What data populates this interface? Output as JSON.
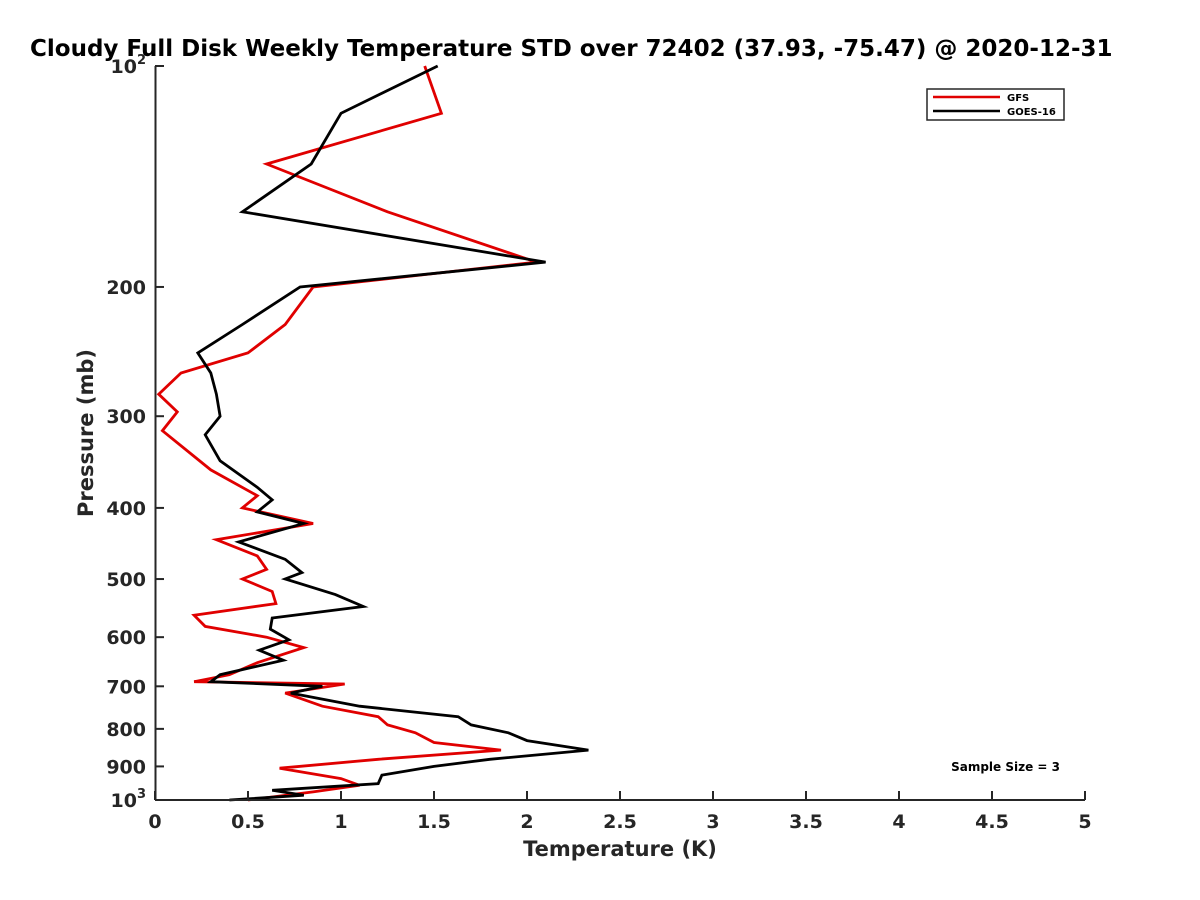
{
  "chart_data": {
    "type": "line",
    "title": "Cloudy Full Disk Weekly Temperature STD over 72402 (37.93, -75.47) @ 2020-12-31",
    "xlabel": "Temperature (K)",
    "ylabel": "Pressure (mb)",
    "xlim": [
      0,
      5
    ],
    "ylim": [
      100,
      1000
    ],
    "y_scale": "log",
    "y_reversed": true,
    "grid": false,
    "legend_position": "top-right",
    "x_ticks": [
      {
        "value": 0,
        "label": "0"
      },
      {
        "value": 0.5,
        "label": "0.5"
      },
      {
        "value": 1,
        "label": "1"
      },
      {
        "value": 1.5,
        "label": "1.5"
      },
      {
        "value": 2,
        "label": "2"
      },
      {
        "value": 2.5,
        "label": "2.5"
      },
      {
        "value": 3,
        "label": "3"
      },
      {
        "value": 3.5,
        "label": "3.5"
      },
      {
        "value": 4,
        "label": "4"
      },
      {
        "value": 4.5,
        "label": "4.5"
      },
      {
        "value": 5,
        "label": "5"
      }
    ],
    "y_ticks": [
      {
        "value": 100,
        "label": "10",
        "sup": "2"
      },
      {
        "value": 200,
        "label": "200",
        "sup": ""
      },
      {
        "value": 300,
        "label": "300",
        "sup": ""
      },
      {
        "value": 400,
        "label": "400",
        "sup": ""
      },
      {
        "value": 500,
        "label": "500",
        "sup": ""
      },
      {
        "value": 600,
        "label": "600",
        "sup": ""
      },
      {
        "value": 700,
        "label": "700",
        "sup": ""
      },
      {
        "value": 800,
        "label": "800",
        "sup": ""
      },
      {
        "value": 900,
        "label": "900",
        "sup": ""
      },
      {
        "value": 1000,
        "label": "10",
        "sup": "3"
      }
    ],
    "annotation": "Sample Size = 3",
    "series": [
      {
        "name": "GFS",
        "color": "#e00000",
        "points": [
          [
            1.45,
            100
          ],
          [
            1.54,
            116
          ],
          [
            0.6,
            136
          ],
          [
            1.25,
            158
          ],
          [
            2.05,
            185
          ],
          [
            0.85,
            200
          ],
          [
            0.7,
            225
          ],
          [
            0.5,
            246
          ],
          [
            0.14,
            262
          ],
          [
            0.02,
            280
          ],
          [
            0.12,
            296
          ],
          [
            0.04,
            314
          ],
          [
            0.3,
            355
          ],
          [
            0.55,
            385
          ],
          [
            0.47,
            400
          ],
          [
            0.85,
            420
          ],
          [
            0.33,
            442
          ],
          [
            0.55,
            465
          ],
          [
            0.6,
            485
          ],
          [
            0.47,
            500
          ],
          [
            0.63,
            520
          ],
          [
            0.65,
            540
          ],
          [
            0.21,
            560
          ],
          [
            0.27,
            580
          ],
          [
            0.6,
            600
          ],
          [
            0.8,
            620
          ],
          [
            0.55,
            650
          ],
          [
            0.4,
            675
          ],
          [
            0.21,
            690
          ],
          [
            1.02,
            695
          ],
          [
            0.7,
            715
          ],
          [
            0.9,
            745
          ],
          [
            1.2,
            770
          ],
          [
            1.25,
            790
          ],
          [
            1.4,
            810
          ],
          [
            1.5,
            835
          ],
          [
            1.86,
            855
          ],
          [
            1.2,
            880
          ],
          [
            0.67,
            905
          ],
          [
            1.0,
            935
          ],
          [
            1.1,
            955
          ],
          [
            0.85,
            975
          ],
          [
            0.5,
            1000
          ]
        ]
      },
      {
        "name": "GOES-16",
        "color": "#000000",
        "points": [
          [
            1.52,
            100
          ],
          [
            1.0,
            116
          ],
          [
            0.84,
            136
          ],
          [
            0.47,
            158
          ],
          [
            2.1,
            185
          ],
          [
            0.78,
            200
          ],
          [
            0.47,
            225
          ],
          [
            0.23,
            246
          ],
          [
            0.3,
            262
          ],
          [
            0.33,
            280
          ],
          [
            0.35,
            300
          ],
          [
            0.27,
            318
          ],
          [
            0.35,
            345
          ],
          [
            0.55,
            375
          ],
          [
            0.63,
            390
          ],
          [
            0.55,
            405
          ],
          [
            0.8,
            420
          ],
          [
            0.45,
            445
          ],
          [
            0.7,
            470
          ],
          [
            0.79,
            490
          ],
          [
            0.7,
            500
          ],
          [
            0.97,
            525
          ],
          [
            1.12,
            545
          ],
          [
            0.63,
            565
          ],
          [
            0.62,
            585
          ],
          [
            0.72,
            605
          ],
          [
            0.56,
            625
          ],
          [
            0.69,
            645
          ],
          [
            0.35,
            675
          ],
          [
            0.3,
            690
          ],
          [
            0.9,
            700
          ],
          [
            0.73,
            715
          ],
          [
            1.1,
            745
          ],
          [
            1.63,
            770
          ],
          [
            1.7,
            790
          ],
          [
            1.9,
            810
          ],
          [
            2.0,
            830
          ],
          [
            2.33,
            855
          ],
          [
            1.8,
            880
          ],
          [
            1.5,
            900
          ],
          [
            1.22,
            925
          ],
          [
            1.2,
            950
          ],
          [
            0.63,
            970
          ],
          [
            0.8,
            985
          ],
          [
            0.4,
            1000
          ]
        ]
      }
    ]
  }
}
